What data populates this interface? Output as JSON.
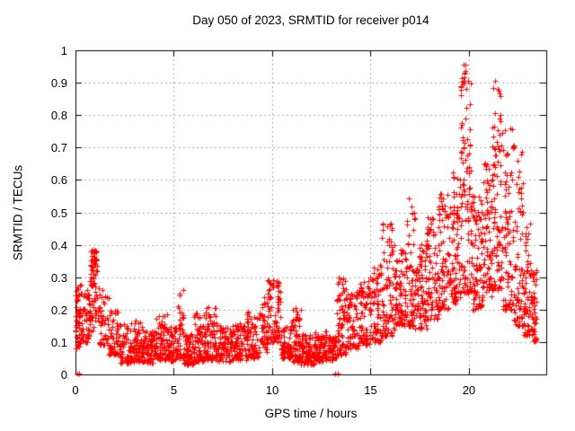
{
  "window": {
    "background": "#ffffff"
  },
  "chart_data": {
    "type": "scatter",
    "title": "Day 050 of 2023, SRMTID for receiver p014",
    "xlabel": "GPS time / hours",
    "ylabel": "SRMTID / TECUs",
    "xlim": [
      0,
      23.93
    ],
    "ylim": [
      0,
      1
    ],
    "xticks": [
      {
        "v": 0,
        "label": "0"
      },
      {
        "v": 5,
        "label": "5"
      },
      {
        "v": 10,
        "label": "10"
      },
      {
        "v": 15,
        "label": "15"
      },
      {
        "v": 20,
        "label": "20"
      }
    ],
    "yticks": [
      {
        "v": 0,
        "label": "0"
      },
      {
        "v": 0.1,
        "label": "0.1"
      },
      {
        "v": 0.2,
        "label": "0.2"
      },
      {
        "v": 0.3,
        "label": "0.3"
      },
      {
        "v": 0.4,
        "label": "0.4"
      },
      {
        "v": 0.5,
        "label": "0.5"
      },
      {
        "v": 0.6,
        "label": "0.6"
      },
      {
        "v": 0.7,
        "label": "0.7"
      },
      {
        "v": 0.8,
        "label": "0.8"
      },
      {
        "v": 0.9,
        "label": "0.9"
      },
      {
        "v": 1,
        "label": "1"
      }
    ],
    "grid": {
      "on": true,
      "dashed": true,
      "color": "#a8a8a8"
    },
    "legend": "none",
    "marker": {
      "glyph": "+",
      "color": "#ff0000",
      "size": 7
    },
    "axis_color": "#000000",
    "seed": 20230050,
    "series": [
      {
        "name": "SRMTID",
        "representation": "density-bins",
        "bins_format": [
          "t_start_hours",
          "t_end_hours",
          "y_min_TECUs",
          "y_max_TECUs",
          "n_points",
          "skew_power"
        ],
        "bins": [
          [
            0.0,
            0.3,
            0.08,
            0.28,
            55,
            1.4
          ],
          [
            0.3,
            0.7,
            0.1,
            0.26,
            45,
            1.5
          ],
          [
            0.7,
            1.2,
            0.13,
            0.3,
            40,
            1.3
          ],
          [
            0.75,
            1.15,
            0.27,
            0.385,
            45,
            0.9
          ],
          [
            1.2,
            1.7,
            0.09,
            0.28,
            45,
            1.6
          ],
          [
            1.7,
            2.2,
            0.06,
            0.2,
            55,
            1.5
          ],
          [
            2.2,
            3.0,
            0.035,
            0.16,
            85,
            1.5
          ],
          [
            3.0,
            3.6,
            0.04,
            0.17,
            75,
            1.5
          ],
          [
            3.6,
            4.1,
            0.035,
            0.14,
            70,
            1.5
          ],
          [
            4.1,
            4.7,
            0.045,
            0.19,
            75,
            1.5
          ],
          [
            4.7,
            5.2,
            0.04,
            0.15,
            65,
            1.5
          ],
          [
            5.2,
            5.5,
            0.05,
            0.26,
            35,
            1.8
          ],
          [
            5.5,
            6.0,
            0.03,
            0.13,
            65,
            1.4
          ],
          [
            6.0,
            6.6,
            0.04,
            0.19,
            80,
            1.6
          ],
          [
            6.6,
            7.2,
            0.045,
            0.21,
            80,
            1.6
          ],
          [
            7.2,
            8.0,
            0.04,
            0.15,
            90,
            1.4
          ],
          [
            8.0,
            8.7,
            0.045,
            0.16,
            80,
            1.4
          ],
          [
            8.7,
            9.4,
            0.05,
            0.2,
            80,
            1.6
          ],
          [
            9.4,
            9.75,
            0.07,
            0.24,
            40,
            1.5
          ],
          [
            9.75,
            10.45,
            0.1,
            0.295,
            85,
            1.2
          ],
          [
            10.45,
            10.95,
            0.05,
            0.15,
            60,
            1.5
          ],
          [
            10.95,
            11.45,
            0.04,
            0.215,
            70,
            1.7
          ],
          [
            11.45,
            12.15,
            0.03,
            0.125,
            90,
            1.3
          ],
          [
            12.15,
            12.75,
            0.04,
            0.135,
            80,
            1.4
          ],
          [
            12.75,
            13.25,
            0.04,
            0.12,
            60,
            1.4
          ],
          [
            13.25,
            13.75,
            0.06,
            0.3,
            70,
            1.9
          ],
          [
            13.75,
            14.35,
            0.08,
            0.26,
            70,
            1.7
          ],
          [
            14.35,
            14.95,
            0.09,
            0.29,
            70,
            1.7
          ],
          [
            14.95,
            15.55,
            0.1,
            0.34,
            75,
            1.7
          ],
          [
            15.55,
            16.25,
            0.12,
            0.475,
            90,
            1.9
          ],
          [
            16.25,
            16.85,
            0.15,
            0.39,
            80,
            1.6
          ],
          [
            16.85,
            17.25,
            0.15,
            0.545,
            65,
            1.9
          ],
          [
            17.25,
            17.85,
            0.14,
            0.41,
            80,
            1.6
          ],
          [
            17.85,
            18.45,
            0.17,
            0.49,
            80,
            1.6
          ],
          [
            18.45,
            19.05,
            0.2,
            0.56,
            80,
            1.5
          ],
          [
            19.05,
            19.55,
            0.22,
            0.63,
            80,
            1.5
          ],
          [
            19.55,
            20.15,
            0.25,
            0.96,
            110,
            1.6
          ],
          [
            20.15,
            20.7,
            0.2,
            0.56,
            85,
            1.5
          ],
          [
            20.7,
            21.15,
            0.24,
            0.66,
            70,
            1.5
          ],
          [
            21.15,
            21.7,
            0.26,
            0.91,
            90,
            1.6
          ],
          [
            21.7,
            22.25,
            0.2,
            0.76,
            80,
            1.7
          ],
          [
            22.25,
            22.75,
            0.15,
            0.72,
            70,
            1.8
          ],
          [
            22.75,
            23.15,
            0.12,
            0.47,
            60,
            1.6
          ],
          [
            23.15,
            23.45,
            0.1,
            0.33,
            50,
            1.5
          ]
        ],
        "extra_points": [
          [
            0.1,
            0.004
          ],
          [
            0.18,
            0.004
          ],
          [
            13.22,
            0.004
          ],
          [
            13.35,
            0.004
          ],
          [
            19.72,
            0.955
          ],
          [
            19.78,
            0.93
          ],
          [
            19.84,
            0.955
          ],
          [
            21.33,
            0.905
          ],
          [
            21.45,
            0.88
          ],
          [
            21.62,
            0.86
          ],
          [
            5.32,
            0.245
          ],
          [
            22.3,
            0.7
          ]
        ]
      }
    ]
  }
}
